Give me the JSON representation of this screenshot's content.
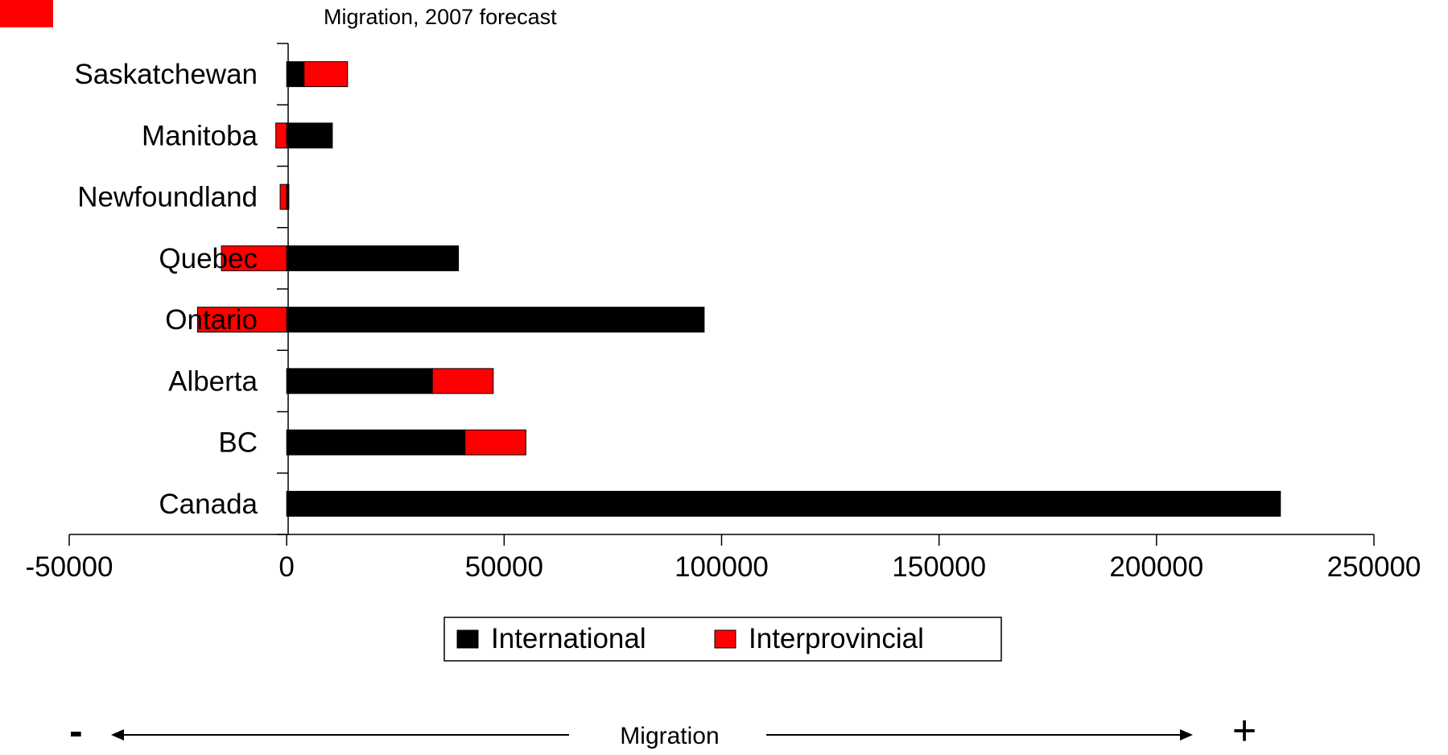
{
  "colors": {
    "international": "#000000",
    "interprovincial": "#ff0000",
    "corner_swatch": "#ff0000",
    "axis": "#000000"
  },
  "bottom_caption": {
    "minus": "-",
    "label": "Migration",
    "plus": "+"
  },
  "chart_data": {
    "type": "bar",
    "orientation": "horizontal",
    "stacked": true,
    "title": "Migration, 2007 forecast",
    "categories": [
      "Saskatchewan",
      "Manitoba",
      "Newfoundland",
      "Quebec",
      "Ontario",
      "Alberta",
      "BC",
      "Canada"
    ],
    "series": [
      {
        "name": "International",
        "values": [
          4000,
          10500,
          500,
          39500,
          96000,
          33500,
          41000,
          228500
        ]
      },
      {
        "name": "Interprovincial",
        "values": [
          10000,
          -2500,
          -1500,
          -15000,
          -20500,
          14000,
          14000,
          0
        ]
      }
    ],
    "xlim": [
      -50000,
      250000
    ],
    "xticks": [
      -50000,
      0,
      50000,
      100000,
      150000,
      200000,
      250000
    ],
    "xtick_labels": [
      "-50000",
      "0",
      "50000",
      "100000",
      "150000",
      "200000",
      "250000"
    ],
    "grid": false,
    "legend_position": "bottom-center"
  }
}
